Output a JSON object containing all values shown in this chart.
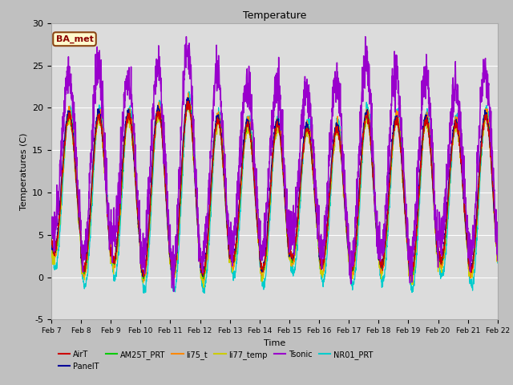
{
  "title": "Temperature",
  "xlabel": "Time",
  "ylabel": "Temperatures (C)",
  "ylim": [
    -5,
    30
  ],
  "xlim": [
    0,
    15
  ],
  "fig_bg": "#c0c0c0",
  "plot_bg": "#dcdcdc",
  "annotation_text": "BA_met",
  "annotation_fg": "#8b0000",
  "annotation_bg": "#fffacd",
  "annotation_border": "#8b4513",
  "legend_entries": [
    "AirT",
    "PanelT",
    "AM25T_PRT",
    "li75_t",
    "li77_temp",
    "Tsonic",
    "NR01_PRT"
  ],
  "legend_colors": [
    "#cc0000",
    "#000099",
    "#00cc00",
    "#ff8800",
    "#cccc00",
    "#9900cc",
    "#00cccc"
  ],
  "xtick_labels": [
    "Feb 7",
    "Feb 8",
    "Feb 9",
    "Feb 10",
    "Feb 11",
    "Feb 12",
    "Feb 13",
    "Feb 14",
    "Feb 15",
    "Feb 16",
    "Feb 17",
    "Feb 18",
    "Feb 19",
    "Feb 20",
    "Feb 21",
    "Feb 22"
  ],
  "ytick_labels": [
    -5,
    0,
    5,
    10,
    15,
    20,
    25,
    30
  ],
  "grid_color": "#ffffff",
  "spine_color": "#aaaaaa"
}
